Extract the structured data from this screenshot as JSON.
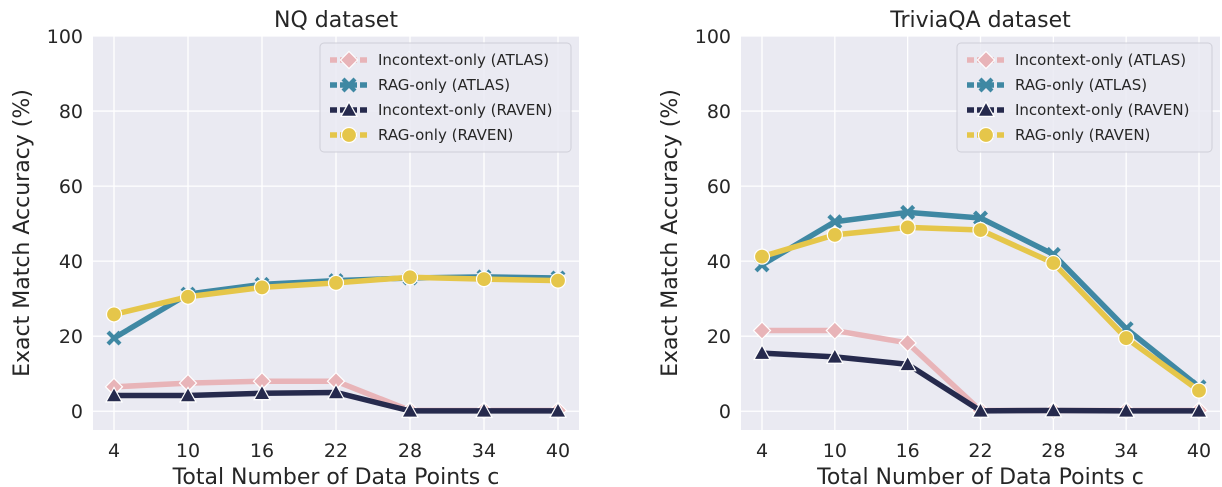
{
  "chart_data": [
    {
      "type": "line",
      "title": "NQ dataset",
      "xlabel": "Total Number of Data Points c",
      "ylabel": "Exact Match Accuracy (%)",
      "x": [
        4,
        10,
        16,
        22,
        28,
        34,
        40
      ],
      "xticks": [
        "4",
        "10",
        "16",
        "22",
        "28",
        "34",
        "40"
      ],
      "yticks": [
        "0",
        "20",
        "40",
        "60",
        "80",
        "100"
      ],
      "ylim": [
        -5,
        100
      ],
      "grid": true,
      "legend_position": "top-right",
      "series": [
        {
          "name": "Incontext-only (ATLAS)",
          "color": "#e8b4b8",
          "marker": "diamond",
          "values": [
            6.5,
            7.5,
            8.0,
            8.0,
            0.2,
            0.2,
            0.2
          ]
        },
        {
          "name": "RAG-only (ATLAS)",
          "color": "#3f88a3",
          "marker": "x",
          "values": [
            19.5,
            31.2,
            33.8,
            34.8,
            35.5,
            35.8,
            35.5
          ]
        },
        {
          "name": "Incontext-only (RAVEN)",
          "color": "#262a4d",
          "marker": "triangle",
          "values": [
            4.2,
            4.2,
            4.8,
            5.0,
            0.1,
            0.1,
            0.1
          ]
        },
        {
          "name": "RAG-only (RAVEN)",
          "color": "#e5c64a",
          "marker": "circle",
          "values": [
            25.8,
            30.5,
            33.0,
            34.2,
            35.7,
            35.2,
            34.8
          ]
        }
      ]
    },
    {
      "type": "line",
      "title": "TriviaQA dataset",
      "xlabel": "Total Number of Data Points c",
      "ylabel": "Exact Match Accuracy (%)",
      "x": [
        4,
        10,
        16,
        22,
        28,
        34,
        40
      ],
      "xticks": [
        "4",
        "10",
        "16",
        "22",
        "28",
        "34",
        "40"
      ],
      "yticks": [
        "0",
        "20",
        "40",
        "60",
        "80",
        "100"
      ],
      "ylim": [
        -5,
        100
      ],
      "grid": true,
      "legend_position": "top-right",
      "series": [
        {
          "name": "Incontext-only (ATLAS)",
          "color": "#e8b4b8",
          "marker": "diamond",
          "values": [
            21.5,
            21.5,
            18.2,
            0.2,
            0.2,
            0.2,
            0.2
          ]
        },
        {
          "name": "RAG-only (ATLAS)",
          "color": "#3f88a3",
          "marker": "x",
          "values": [
            39.0,
            50.5,
            53.0,
            51.5,
            41.8,
            22.0,
            6.5
          ]
        },
        {
          "name": "Incontext-only (RAVEN)",
          "color": "#262a4d",
          "marker": "triangle",
          "values": [
            15.5,
            14.5,
            12.5,
            0.1,
            0.2,
            0.1,
            0.1
          ]
        },
        {
          "name": "RAG-only (RAVEN)",
          "color": "#e5c64a",
          "marker": "circle",
          "values": [
            41.2,
            47.0,
            49.0,
            48.3,
            39.5,
            19.5,
            5.5
          ]
        }
      ]
    }
  ]
}
